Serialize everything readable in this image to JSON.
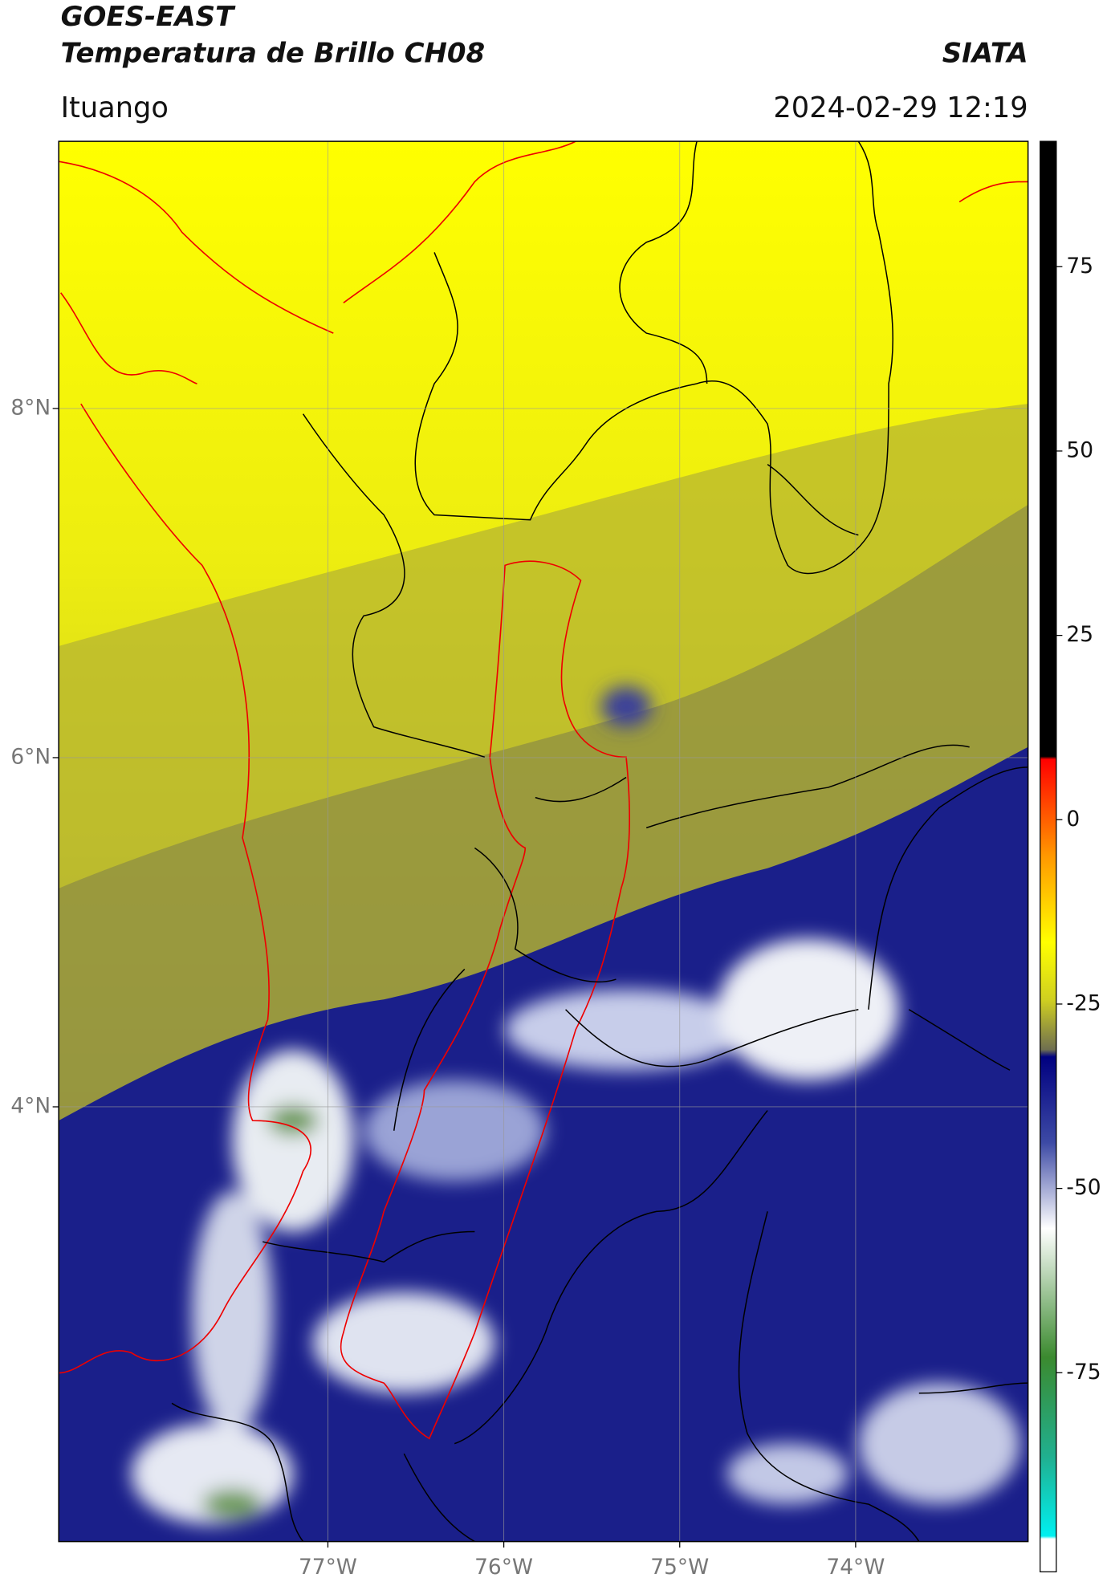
{
  "header": {
    "title": "GOES-EAST",
    "subtitle": "Temperatura de Brillo CH08",
    "source": "SIATA",
    "location": "Ituango",
    "timestamp": "2024-02-29 12:19"
  },
  "map": {
    "xlim": [
      -78.53,
      -73.02
    ],
    "ylim": [
      1.51,
      9.53
    ],
    "xticks": [
      {
        "value": -77,
        "label": "77°W"
      },
      {
        "value": -76,
        "label": "76°W"
      },
      {
        "value": -75,
        "label": "75°W"
      },
      {
        "value": -74,
        "label": "74°W"
      }
    ],
    "yticks": [
      {
        "value": 8,
        "label": "8°N"
      },
      {
        "value": 6,
        "label": "6°N"
      },
      {
        "value": 4,
        "label": "4°N"
      }
    ],
    "grid": true
  },
  "colorbar": {
    "clim": [
      -102,
      92
    ],
    "ticks": [
      75,
      50,
      25,
      0,
      -25,
      -50,
      -75
    ]
  }
}
